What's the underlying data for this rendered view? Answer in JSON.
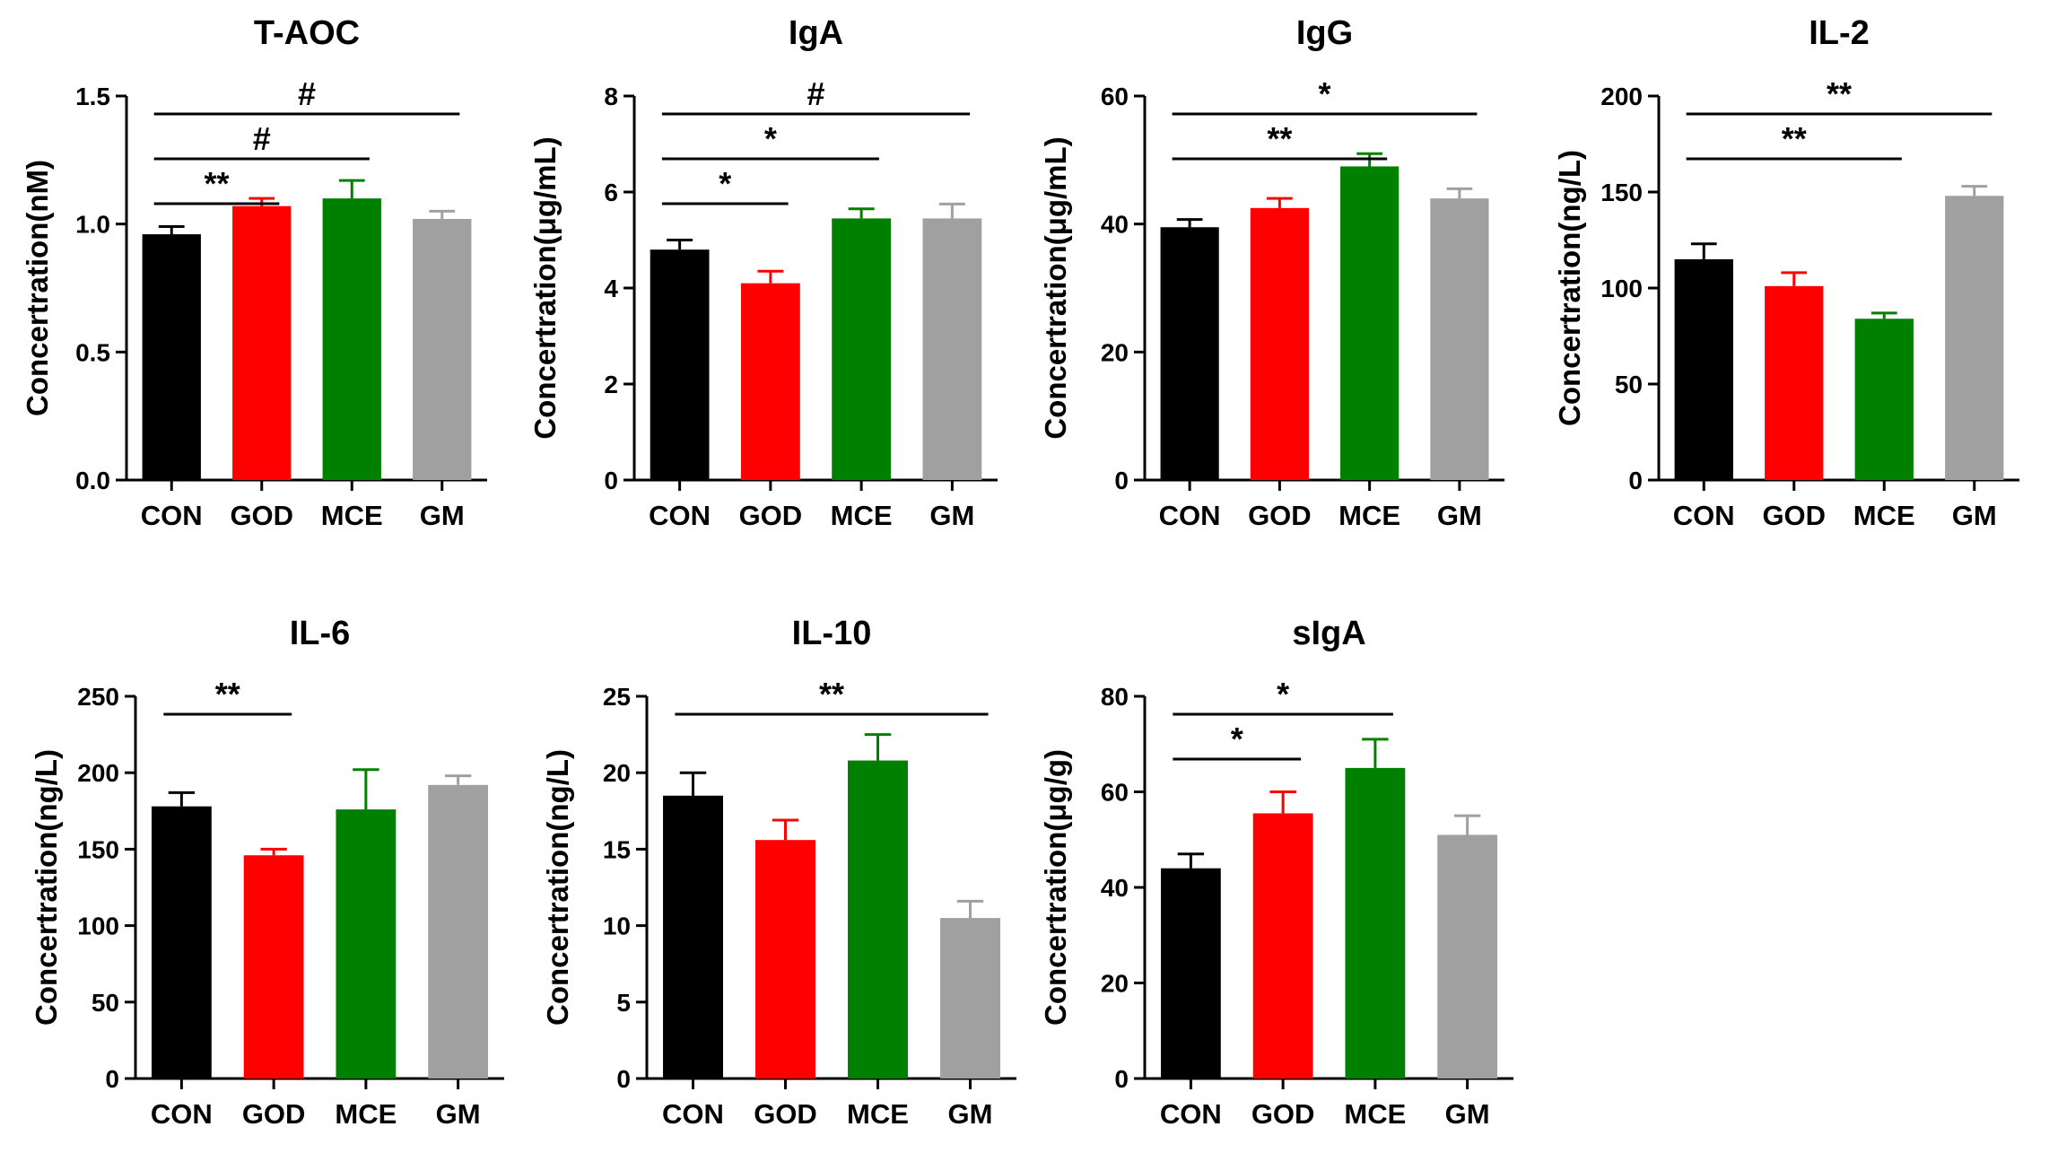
{
  "chart_data": [
    {
      "type": "bar",
      "title": "T-AOC",
      "ylabel": "Concertration(nM)",
      "categories": [
        "CON",
        "GOD",
        "MCE",
        "GM"
      ],
      "values": [
        0.96,
        1.07,
        1.1,
        1.02
      ],
      "errors": [
        0.03,
        0.03,
        0.07,
        0.03
      ],
      "ylim": [
        0,
        1.5
      ],
      "yticks": [
        0,
        0.5,
        1.0,
        1.5
      ],
      "ytick_labels": [
        "0.0",
        "0.5",
        "1.0",
        "1.5"
      ],
      "significance": [
        {
          "from": 0,
          "to": 1,
          "label": "**",
          "level": 0
        },
        {
          "from": 0,
          "to": 2,
          "label": "#",
          "level": 1
        },
        {
          "from": 0,
          "to": 3,
          "label": "#",
          "level": 2
        }
      ]
    },
    {
      "type": "bar",
      "title": "IgA",
      "ylabel": "Concertration(μg/mL)",
      "categories": [
        "CON",
        "GOD",
        "MCE",
        "GM"
      ],
      "values": [
        4.8,
        4.1,
        5.45,
        5.45
      ],
      "errors": [
        0.2,
        0.25,
        0.2,
        0.3
      ],
      "ylim": [
        0,
        8
      ],
      "yticks": [
        0,
        2,
        4,
        6,
        8
      ],
      "ytick_labels": [
        "0",
        "2",
        "4",
        "6",
        "8"
      ],
      "significance": [
        {
          "from": 0,
          "to": 1,
          "label": "*",
          "level": 0
        },
        {
          "from": 0,
          "to": 2,
          "label": "*",
          "level": 1
        },
        {
          "from": 0,
          "to": 3,
          "label": "#",
          "level": 2
        }
      ]
    },
    {
      "type": "bar",
      "title": "IgG",
      "ylabel": "Concertration(μg/mL)",
      "categories": [
        "CON",
        "GOD",
        "MCE",
        "GM"
      ],
      "values": [
        39.5,
        42.5,
        49,
        44
      ],
      "errors": [
        1.2,
        1.5,
        2,
        1.5
      ],
      "ylim": [
        0,
        60
      ],
      "yticks": [
        0,
        20,
        40,
        60
      ],
      "ytick_labels": [
        "0",
        "20",
        "40",
        "60"
      ],
      "significance": [
        {
          "from": 0,
          "to": 2,
          "label": "**",
          "level": 0
        },
        {
          "from": 0,
          "to": 3,
          "label": "*",
          "level": 1
        }
      ]
    },
    {
      "type": "bar",
      "title": "IL-2",
      "ylabel": "Concertration(ng/L)",
      "categories": [
        "CON",
        "GOD",
        "MCE",
        "GM"
      ],
      "values": [
        115,
        101,
        84,
        148
      ],
      "errors": [
        8,
        7,
        3,
        5
      ],
      "ylim": [
        0,
        200
      ],
      "yticks": [
        0,
        50,
        100,
        150,
        200
      ],
      "ytick_labels": [
        "0",
        "50",
        "100",
        "150",
        "200"
      ],
      "significance": [
        {
          "from": 0,
          "to": 2,
          "label": "**",
          "level": 0
        },
        {
          "from": 0,
          "to": 3,
          "label": "**",
          "level": 1
        }
      ]
    },
    {
      "type": "bar",
      "title": "IL-6",
      "ylabel": "Concertration(ng/L)",
      "categories": [
        "CON",
        "GOD",
        "MCE",
        "GM"
      ],
      "values": [
        178,
        146,
        176,
        192
      ],
      "errors": [
        9,
        4,
        26,
        6
      ],
      "ylim": [
        0,
        250
      ],
      "yticks": [
        0,
        50,
        100,
        150,
        200,
        250
      ],
      "ytick_labels": [
        "0",
        "50",
        "100",
        "150",
        "200",
        "250"
      ],
      "significance": [
        {
          "from": 0,
          "to": 1,
          "label": "**",
          "level": 0
        }
      ]
    },
    {
      "type": "bar",
      "title": "IL-10",
      "ylabel": "Concertration(ng/L)",
      "categories": [
        "CON",
        "GOD",
        "MCE",
        "GM"
      ],
      "values": [
        18.5,
        15.6,
        20.8,
        10.5
      ],
      "errors": [
        1.5,
        1.3,
        1.7,
        1.1
      ],
      "ylim": [
        0,
        25
      ],
      "yticks": [
        0,
        5,
        10,
        15,
        20,
        25
      ],
      "ytick_labels": [
        "0",
        "5",
        "10",
        "15",
        "20",
        "25"
      ],
      "significance": [
        {
          "from": 0,
          "to": 3,
          "label": "**",
          "level": 0
        }
      ]
    },
    {
      "type": "bar",
      "title": "sIgA",
      "ylabel": "Concertration(μg/g)",
      "categories": [
        "CON",
        "GOD",
        "MCE",
        "GM"
      ],
      "values": [
        44,
        55.5,
        65,
        51
      ],
      "errors": [
        3,
        4.5,
        6,
        4
      ],
      "ylim": [
        0,
        80
      ],
      "yticks": [
        0,
        20,
        40,
        60,
        80
      ],
      "ytick_labels": [
        "0",
        "20",
        "40",
        "60",
        "80"
      ],
      "significance": [
        {
          "from": 0,
          "to": 1,
          "label": "*",
          "level": 0
        },
        {
          "from": 0,
          "to": 2,
          "label": "*",
          "level": 1
        }
      ]
    }
  ],
  "colors": {
    "CON": "#000000",
    "GOD": "#ff0000",
    "MCE": "#008000",
    "GM": "#a0a0a0"
  }
}
